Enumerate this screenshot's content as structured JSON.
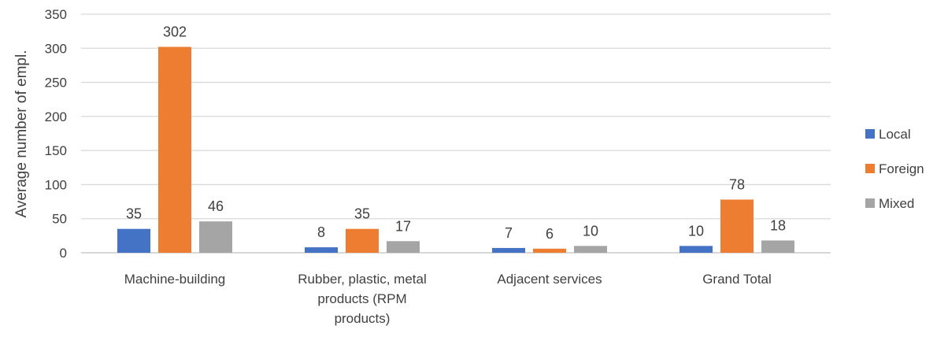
{
  "chart_data": {
    "type": "bar",
    "categories": [
      [
        "Machine-building"
      ],
      [
        "Rubber, plastic, metal",
        "products (RPM",
        "products)"
      ],
      [
        "Adjacent services"
      ],
      [
        "Grand Total"
      ]
    ],
    "series": [
      {
        "name": "Local",
        "values": [
          35,
          8,
          7,
          10
        ],
        "color": "#4472c4"
      },
      {
        "name": "Foreign",
        "values": [
          302,
          35,
          6,
          78
        ],
        "color": "#ed7d31"
      },
      {
        "name": "Mixed",
        "values": [
          46,
          17,
          10,
          18
        ],
        "color": "#a5a5a5"
      }
    ],
    "xlabel": "",
    "ylabel": "Average number of empl.",
    "ylim": [
      0,
      350
    ],
    "yticks": [
      0,
      50,
      100,
      150,
      200,
      250,
      300,
      350
    ],
    "grid": true,
    "legend_position": "right",
    "data_labels": true
  }
}
